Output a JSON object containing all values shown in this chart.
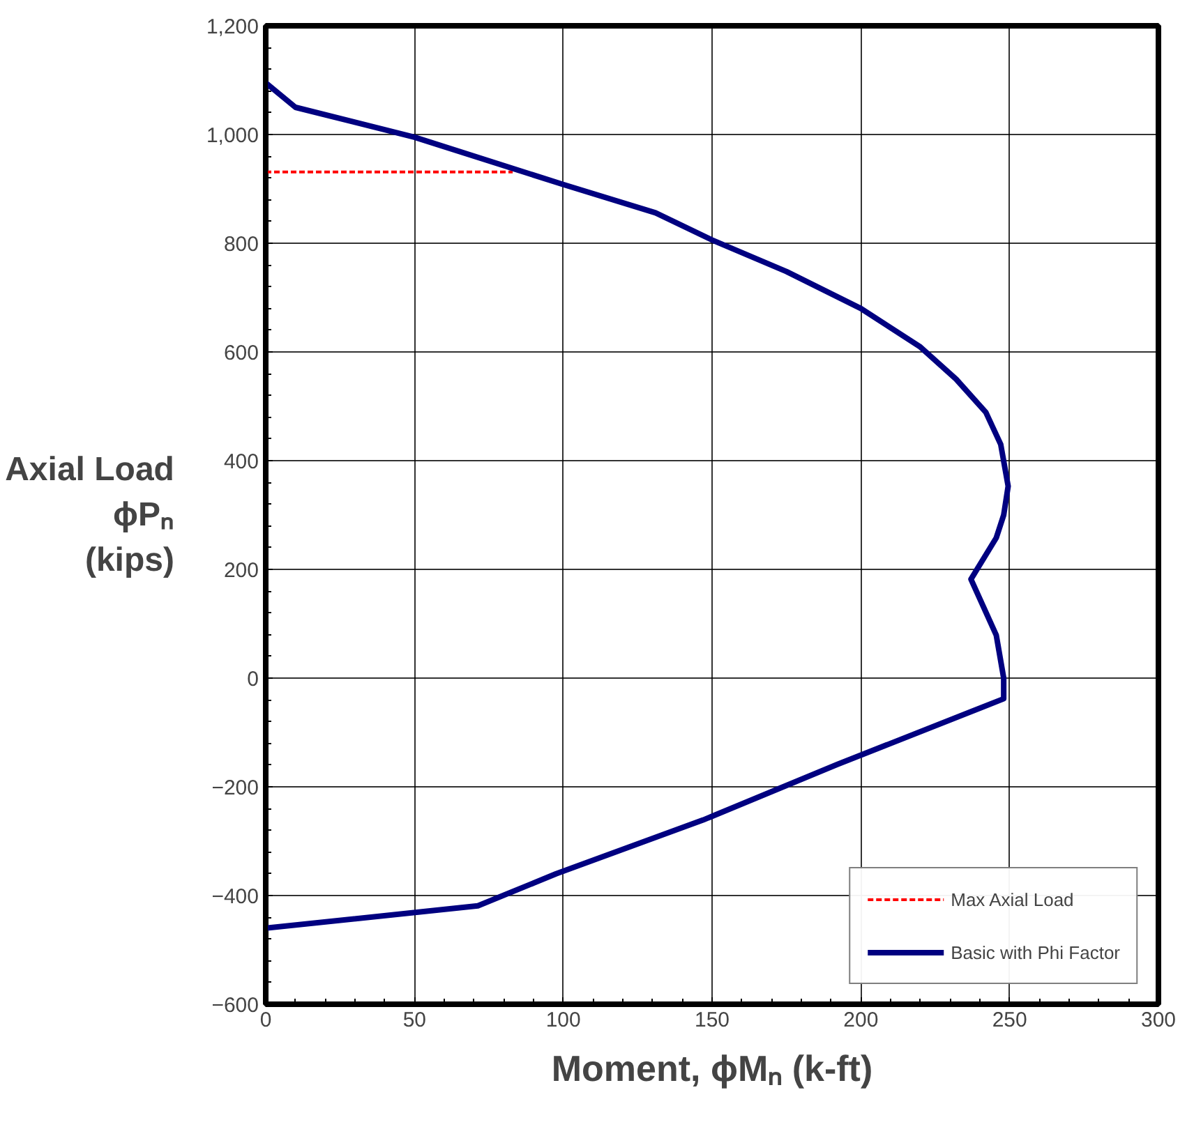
{
  "chart_data": {
    "type": "line",
    "xlabel": "Moment, ϕMₙ (k-ft)",
    "ylabel": "Axial Load\nϕPₙ\n(kips)",
    "xlim": [
      0,
      300
    ],
    "xticks": [
      0,
      50,
      100,
      150,
      200,
      250,
      300
    ],
    "ylim": [
      -600,
      1200
    ],
    "yticks": [
      -600,
      -400,
      -200,
      0,
      200,
      400,
      600,
      800,
      {
        "value": 1000,
        "label": "1,000"
      },
      {
        "value": 1200,
        "label": "1,200"
      }
    ],
    "grid": true,
    "legend": "bottom right",
    "series": [
      {
        "name": "Max Axial Load",
        "color": "#ff0000",
        "line_style": "dashed",
        "x": [
          0,
          83
        ],
        "values": [
          931,
          931
        ]
      },
      {
        "name": "Basic with Phi Factor",
        "color": "#000080",
        "line_style": "solid",
        "x": [
          0,
          10,
          50,
          100,
          131,
          150,
          175,
          200,
          220,
          232,
          242,
          247,
          249.5,
          248,
          245.5,
          237,
          245.5,
          248,
          248,
          192,
          147,
          97.6,
          71.3,
          0
        ],
        "values": [
          1095,
          1050,
          995,
          908,
          856,
          806,
          748,
          680,
          609,
          550,
          489,
          430,
          353,
          300,
          258,
          182,
          79,
          0,
          -38,
          -159,
          -261,
          -360,
          -419,
          -460
        ]
      }
    ]
  }
}
